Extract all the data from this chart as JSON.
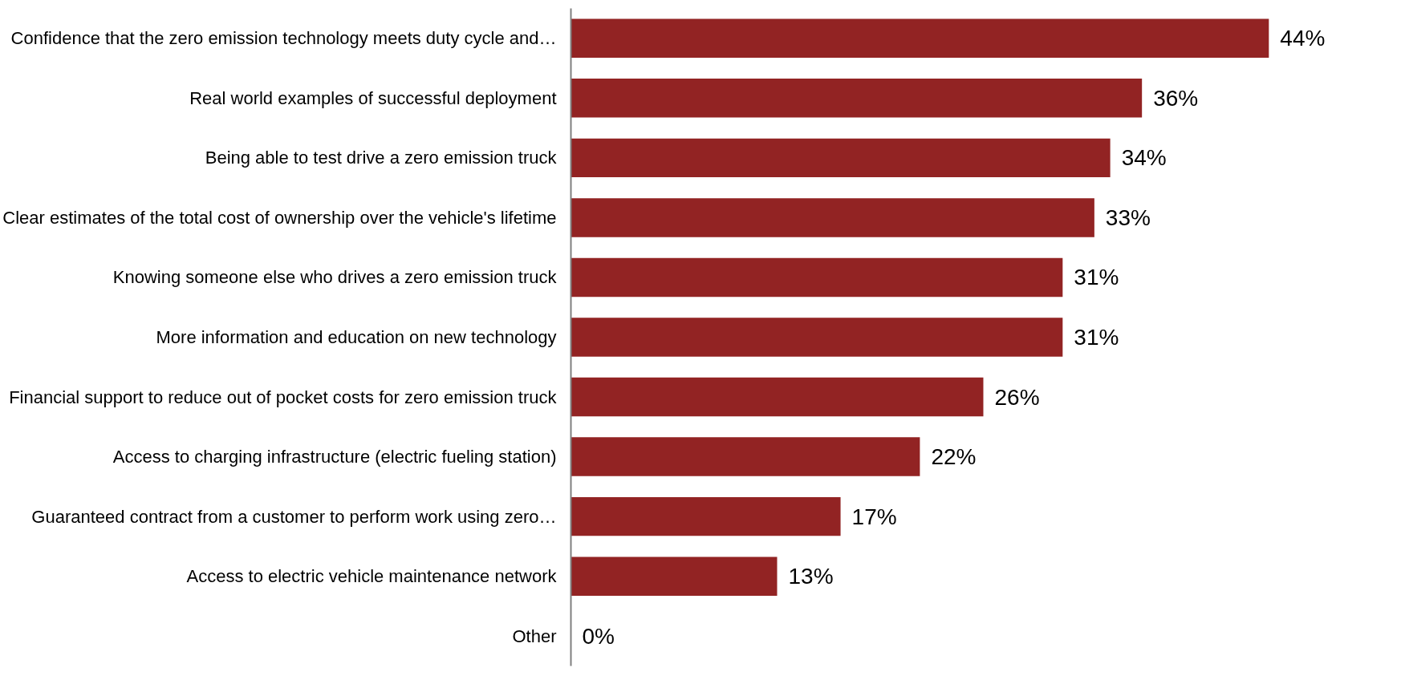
{
  "chart_data": {
    "type": "bar",
    "orientation": "horizontal",
    "grid": false,
    "tick_labels": "y",
    "categories": [
      "Confidence that the zero emission technology meets duty cycle and…",
      "Real world examples of successful deployment",
      "Being able to test drive a zero emission truck",
      "Clear estimates of the total cost of ownership over the vehicle's lifetime",
      "Knowing someone else who drives a zero emission truck",
      "More information and education on new technology",
      "Financial support to reduce out of pocket costs for zero emission truck",
      "Access to charging infrastructure (electric fueling station)",
      "Guaranteed contract from a customer to perform work using zero…",
      "Access to electric vehicle maintenance network",
      "Other"
    ],
    "values": [
      44,
      36,
      34,
      33,
      31,
      31,
      26,
      22,
      17,
      13,
      0
    ],
    "value_labels": [
      "44%",
      "36%",
      "34%",
      "33%",
      "31%",
      "31%",
      "26%",
      "22%",
      "17%",
      "13%",
      "0%"
    ],
    "color": "#922323"
  }
}
